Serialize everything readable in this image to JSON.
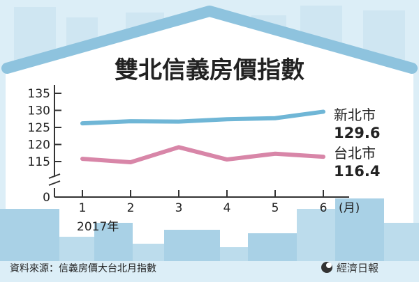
{
  "chart_data": {
    "type": "line",
    "title": "雙北信義房價指數",
    "x": [
      "1",
      "2",
      "3",
      "4",
      "5",
      "6"
    ],
    "x_unit": "(月)",
    "year_label": "2017年",
    "y_ticks": [
      "135",
      "130",
      "125",
      "120",
      "115",
      "0"
    ],
    "ylim": [
      110,
      135
    ],
    "y_axis_break": true,
    "series": [
      {
        "name": "新北市",
        "last_value_label": "129.6",
        "color": "#6fb6d6",
        "values": [
          126.2,
          126.8,
          126.7,
          127.4,
          127.7,
          129.6
        ]
      },
      {
        "name": "台北市",
        "last_value_label": "116.4",
        "color": "#d886a8",
        "values": [
          115.8,
          114.8,
          119.2,
          115.6,
          117.3,
          116.4
        ]
      }
    ],
    "grid": false
  },
  "footer": {
    "source": "資料來源：信義房價大台北月指數",
    "brand": "經濟日報"
  },
  "colors": {
    "background_city": "#cfe6f2",
    "building": "#a9d1e6",
    "roof": "#8ec3de"
  }
}
